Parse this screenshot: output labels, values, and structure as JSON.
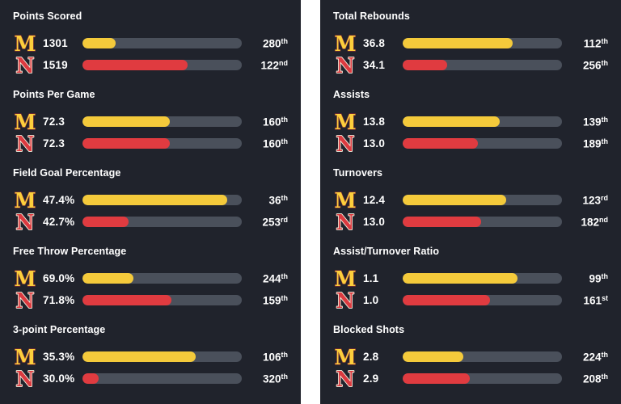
{
  "colors": {
    "page_background": "#ffffff",
    "panel_background": "#20232c",
    "bar_track": "#4a505b",
    "text": "#ffffff",
    "gold": "#f4ca3b",
    "red": "#e03b40"
  },
  "teams": [
    {
      "letter": "M",
      "logo_name": "minnesota-logo",
      "logo_fill": "#fccf3c",
      "logo_stroke": "#7b2b33",
      "bar_color": "#f4ca3b"
    },
    {
      "letter": "N",
      "logo_name": "nebraska-logo",
      "logo_fill": "#db3a40",
      "logo_stroke": "#f3eddd",
      "bar_color": "#e03b40"
    }
  ],
  "chart_data": {
    "type": "bar",
    "orientation": "horizontal",
    "legend": [
      "M",
      "N"
    ],
    "note_bar_meaning": "fill_pct is the rendered bar fill as percent of track width",
    "columns": [
      {
        "stats": [
          {
            "title": "Points Scored",
            "rows": [
              {
                "team": "M",
                "value": "1301",
                "fill_pct": 21,
                "rank": "280",
                "ordinal": "th"
              },
              {
                "team": "N",
                "value": "1519",
                "fill_pct": 66,
                "rank": "122",
                "ordinal": "nd"
              }
            ]
          },
          {
            "title": "Points Per Game",
            "rows": [
              {
                "team": "M",
                "value": "72.3",
                "fill_pct": 55,
                "rank": "160",
                "ordinal": "th"
              },
              {
                "team": "N",
                "value": "72.3",
                "fill_pct": 55,
                "rank": "160",
                "ordinal": "th"
              }
            ]
          },
          {
            "title": "Field Goal Percentage",
            "rows": [
              {
                "team": "M",
                "value": "47.4%",
                "fill_pct": 91,
                "rank": "36",
                "ordinal": "th"
              },
              {
                "team": "N",
                "value": "42.7%",
                "fill_pct": 29,
                "rank": "253",
                "ordinal": "rd"
              }
            ]
          },
          {
            "title": "Free Throw Percentage",
            "rows": [
              {
                "team": "M",
                "value": "69.0%",
                "fill_pct": 32,
                "rank": "244",
                "ordinal": "th"
              },
              {
                "team": "N",
                "value": "71.8%",
                "fill_pct": 56,
                "rank": "159",
                "ordinal": "th"
              }
            ]
          },
          {
            "title": "3-point Percentage",
            "rows": [
              {
                "team": "M",
                "value": "35.3%",
                "fill_pct": 71,
                "rank": "106",
                "ordinal": "th"
              },
              {
                "team": "N",
                "value": "30.0%",
                "fill_pct": 10,
                "rank": "320",
                "ordinal": "th"
              }
            ]
          }
        ]
      },
      {
        "stats": [
          {
            "title": "Total Rebounds",
            "rows": [
              {
                "team": "M",
                "value": "36.8",
                "fill_pct": 69,
                "rank": "112",
                "ordinal": "th"
              },
              {
                "team": "N",
                "value": "34.1",
                "fill_pct": 28,
                "rank": "256",
                "ordinal": "th"
              }
            ]
          },
          {
            "title": "Assists",
            "rows": [
              {
                "team": "M",
                "value": "13.8",
                "fill_pct": 61,
                "rank": "139",
                "ordinal": "th"
              },
              {
                "team": "N",
                "value": "13.0",
                "fill_pct": 47,
                "rank": "189",
                "ordinal": "th"
              }
            ]
          },
          {
            "title": "Turnovers",
            "rows": [
              {
                "team": "M",
                "value": "12.4",
                "fill_pct": 65,
                "rank": "123",
                "ordinal": "rd"
              },
              {
                "team": "N",
                "value": "13.0",
                "fill_pct": 49,
                "rank": "182",
                "ordinal": "nd"
              }
            ]
          },
          {
            "title": "Assist/Turnover Ratio",
            "rows": [
              {
                "team": "M",
                "value": "1.1",
                "fill_pct": 72,
                "rank": "99",
                "ordinal": "th"
              },
              {
                "team": "N",
                "value": "1.0",
                "fill_pct": 55,
                "rank": "161",
                "ordinal": "st"
              }
            ]
          },
          {
            "title": "Blocked Shots",
            "rows": [
              {
                "team": "M",
                "value": "2.8",
                "fill_pct": 38,
                "rank": "224",
                "ordinal": "th"
              },
              {
                "team": "N",
                "value": "2.9",
                "fill_pct": 42,
                "rank": "208",
                "ordinal": "th"
              }
            ]
          }
        ]
      }
    ]
  }
}
